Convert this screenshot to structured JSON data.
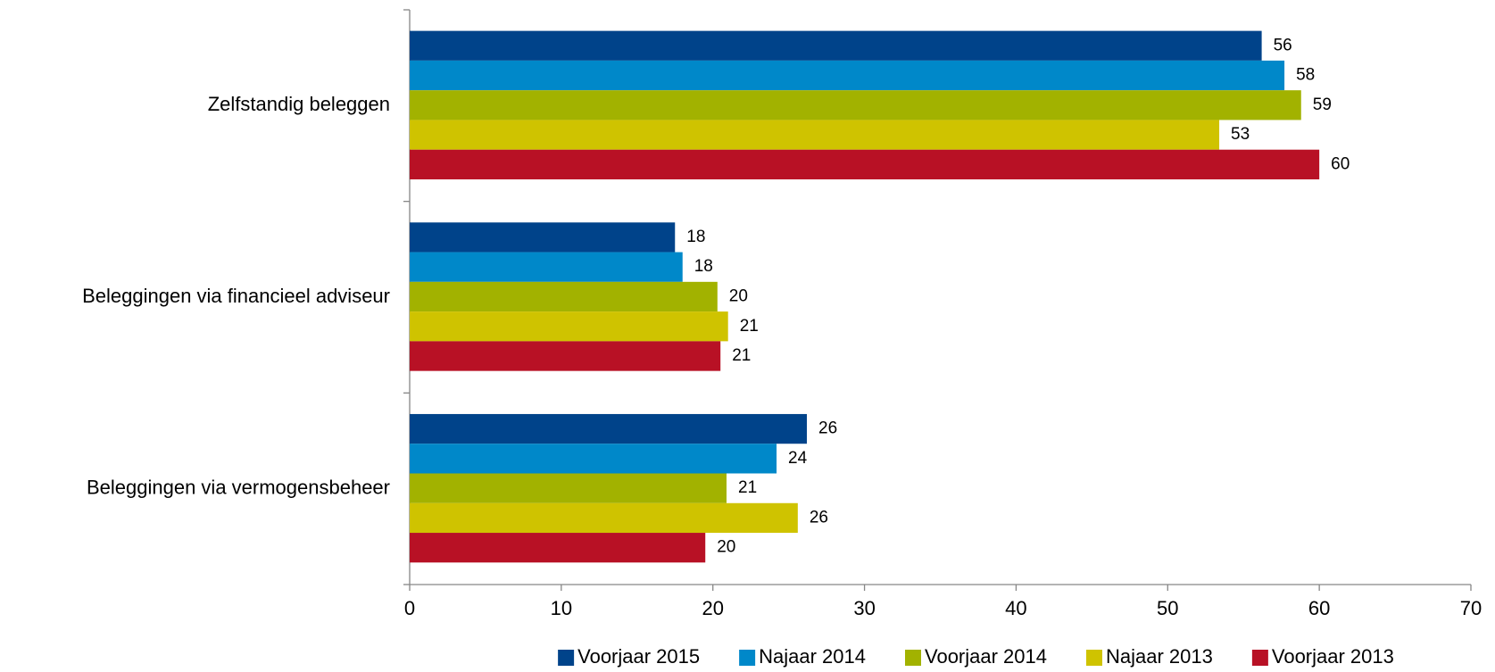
{
  "chart_data": {
    "type": "hbar",
    "categories": [
      "Zelfstandig beleggen",
      "Beleggingen via financieel adviseur",
      "Beleggingen via vermogensbeheer"
    ],
    "series": [
      {
        "name": "Voorjaar 2015",
        "color": "#00438a",
        "values": [
          56.2,
          17.5,
          26.2
        ],
        "value_labels": [
          "56",
          "18",
          "26"
        ]
      },
      {
        "name": "Najaar 2014",
        "color": "#0088c9",
        "values": [
          57.7,
          18.0,
          24.2
        ],
        "value_labels": [
          "58",
          "18",
          "24"
        ]
      },
      {
        "name": "Voorjaar 2014",
        "color": "#a2b200",
        "values": [
          58.8,
          20.3,
          20.9
        ],
        "value_labels": [
          "59",
          "20",
          "21"
        ]
      },
      {
        "name": "Najaar 2013",
        "color": "#cfc300",
        "values": [
          53.4,
          21.0,
          25.6
        ],
        "value_labels": [
          "53",
          "21",
          "26"
        ]
      },
      {
        "name": "Voorjaar 2013",
        "color": "#b81125",
        "values": [
          60.0,
          20.5,
          19.5
        ],
        "value_labels": [
          "60",
          "21",
          "20"
        ]
      }
    ],
    "xlim": [
      0,
      70
    ],
    "xticks": [
      0,
      10,
      20,
      30,
      40,
      50,
      60,
      70
    ],
    "grid": false,
    "legend": "bottom"
  }
}
